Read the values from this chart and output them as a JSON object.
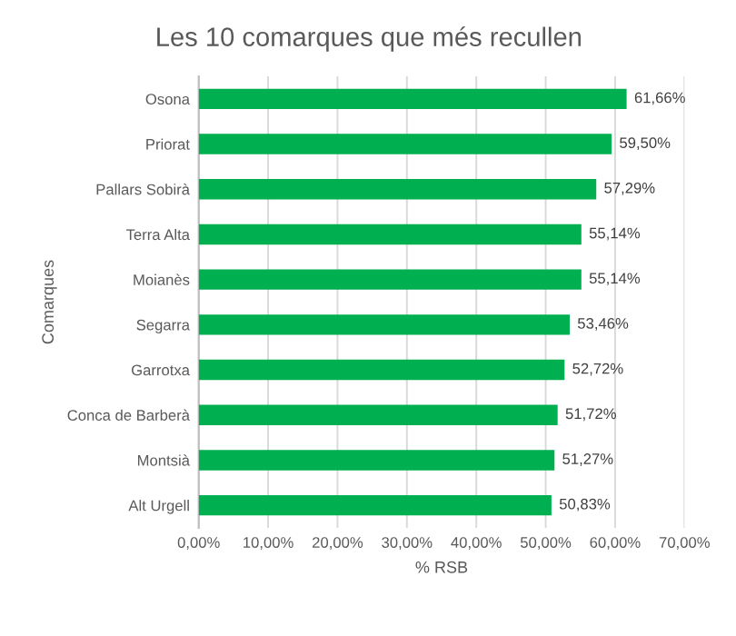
{
  "chart_data": {
    "type": "bar",
    "orientation": "horizontal",
    "title": "Les 10 comarques que més recullen",
    "xlabel": "% RSB",
    "ylabel": "Comarques",
    "categories": [
      "Osona",
      "Priorat",
      "Pallars Sobirà",
      "Terra Alta",
      "Moianès",
      "Segarra",
      "Garrotxa",
      "Conca de Barberà",
      "Montsià",
      "Alt Urgell"
    ],
    "values": [
      61.66,
      59.5,
      57.29,
      55.14,
      55.14,
      53.46,
      52.72,
      51.72,
      51.27,
      50.83
    ],
    "value_labels": [
      "61,66%",
      "59,50%",
      "57,29%",
      "55,14%",
      "55,14%",
      "53,46%",
      "52,72%",
      "51,72%",
      "51,27%",
      "50,83%"
    ],
    "color": "#00b050",
    "xlim": [
      0,
      70
    ],
    "xticks": [
      {
        "value": 0,
        "label": "0,00%"
      },
      {
        "value": 10,
        "label": "10,00%"
      },
      {
        "value": 20,
        "label": "20,00%"
      },
      {
        "value": 30,
        "label": "30,00%"
      },
      {
        "value": 40,
        "label": "40,00%"
      },
      {
        "value": 50,
        "label": "50,00%"
      },
      {
        "value": 60,
        "label": "60,00%"
      },
      {
        "value": 70,
        "label": "70,00%"
      }
    ],
    "grid": "x"
  }
}
